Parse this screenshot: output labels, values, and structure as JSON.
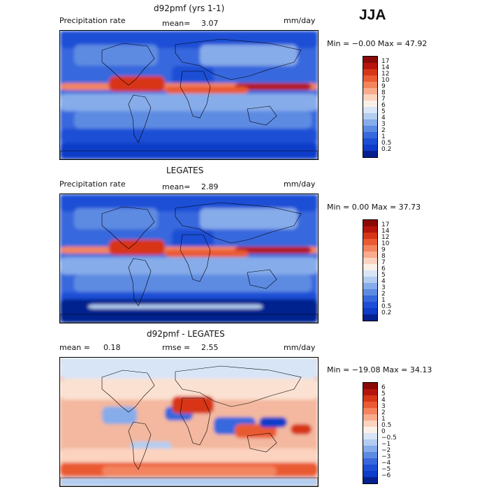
{
  "season": "JJA",
  "panels": [
    {
      "title": "d92pmf (yrs 1-1)",
      "left_label": "Precipitation rate",
      "mean_label": "mean=",
      "mean_value": "3.07",
      "units": "mm/day",
      "minmax": "Min =  −0.00 Max =  47.92",
      "colorbar": {
        "labels": [
          "17",
          "14",
          "12",
          "10",
          "9",
          "8",
          "7",
          "6",
          "5",
          "4",
          "3",
          "2",
          "1",
          "0.5",
          "0.2"
        ],
        "colors": [
          "#8b0a07",
          "#b5150e",
          "#d73518",
          "#ea5a33",
          "#f3845e",
          "#f9ab8d",
          "#fcd3bf",
          "#fbf0e8",
          "#d8e5f6",
          "#b3cdf0",
          "#86acea",
          "#5d8be2",
          "#3868dd",
          "#1d4fd6",
          "#0f3cc8",
          "#06218f"
        ]
      },
      "map_style": "precip_model"
    },
    {
      "title": "LEGATES",
      "left_label": "Precipitation rate",
      "mean_label": "mean=",
      "mean_value": "2.89",
      "units": "mm/day",
      "minmax": "Min =   0.00 Max =  37.73",
      "colorbar": {
        "labels": [
          "17",
          "14",
          "12",
          "10",
          "9",
          "8",
          "7",
          "6",
          "5",
          "4",
          "3",
          "2",
          "1",
          "0.5",
          "0.2"
        ],
        "colors": [
          "#8b0a07",
          "#b5150e",
          "#d73518",
          "#ea5a33",
          "#f3845e",
          "#f9ab8d",
          "#fcd3bf",
          "#fbf0e8",
          "#d8e5f6",
          "#b3cdf0",
          "#86acea",
          "#5d8be2",
          "#3868dd",
          "#1d4fd6",
          "#0f3cc8",
          "#06218f"
        ]
      },
      "map_style": "precip_obs"
    },
    {
      "title": "d92pmf - LEGATES",
      "left_label": "mean =",
      "left_value": "0.18",
      "mean_label": "rmse =",
      "mean_value": "2.55",
      "units": "mm/day",
      "minmax": "Min = −19.08 Max =  34.13",
      "colorbar": {
        "labels": [
          "6",
          "5",
          "4",
          "3",
          "2",
          "1",
          "0.5",
          "0",
          "−0.5",
          "−1",
          "−2",
          "−3",
          "−4",
          "−5",
          "−6"
        ],
        "colors": [
          "#8b0a07",
          "#b5150e",
          "#d73518",
          "#ea5a33",
          "#f3845e",
          "#f9ab8d",
          "#fcd3bf",
          "#fbf0e8",
          "#d8e5f6",
          "#b3cdf0",
          "#86acea",
          "#5d8be2",
          "#3868dd",
          "#1d4fd6",
          "#0f3cc8",
          "#06218f"
        ]
      },
      "map_style": "difference"
    }
  ]
}
